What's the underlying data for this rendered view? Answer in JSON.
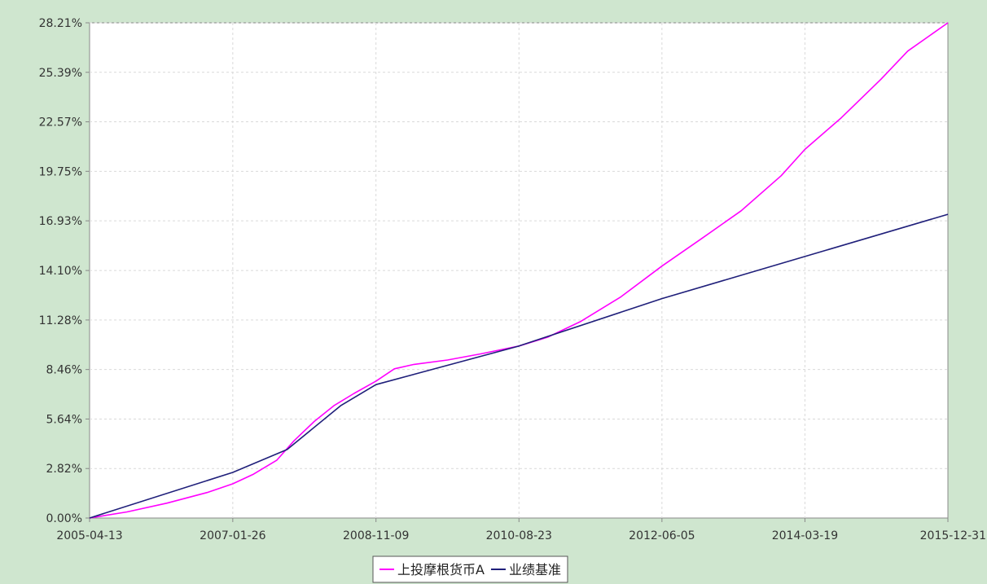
{
  "chart_data": {
    "type": "line",
    "title": "",
    "xlabel": "",
    "ylabel": "",
    "ylim": [
      0,
      28.21
    ],
    "xlim": [
      "2005-04-13",
      "2015-12-31"
    ],
    "y_ticks": [
      "0.00%",
      "2.82%",
      "5.64%",
      "8.46%",
      "11.28%",
      "14.10%",
      "16.93%",
      "19.75%",
      "22.57%",
      "25.39%",
      "28.21%"
    ],
    "x_ticks": [
      "2005-04-13",
      "2007-01-26",
      "2008-11-09",
      "2010-08-23",
      "2012-06-05",
      "2014-03-19",
      "2015-12-31"
    ],
    "grid": true,
    "legend_position": "bottom",
    "series": [
      {
        "name": "上投摩根货币A",
        "color": "#ff00ff",
        "points": [
          [
            "2005-04-13",
            0.0
          ],
          [
            "2005-10-01",
            0.35
          ],
          [
            "2006-04-01",
            0.85
          ],
          [
            "2006-10-01",
            1.45
          ],
          [
            "2007-01-26",
            1.95
          ],
          [
            "2007-05-01",
            2.5
          ],
          [
            "2007-08-15",
            3.3
          ],
          [
            "2007-11-01",
            4.4
          ],
          [
            "2008-02-01",
            5.5
          ],
          [
            "2008-05-01",
            6.4
          ],
          [
            "2008-08-01",
            7.1
          ],
          [
            "2008-11-09",
            7.8
          ],
          [
            "2009-02-01",
            8.5
          ],
          [
            "2009-05-01",
            8.75
          ],
          [
            "2009-10-01",
            9.0
          ],
          [
            "2010-03-01",
            9.35
          ],
          [
            "2010-08-23",
            9.8
          ],
          [
            "2011-01-01",
            10.3
          ],
          [
            "2011-06-01",
            11.2
          ],
          [
            "2011-12-01",
            12.6
          ],
          [
            "2012-06-05",
            14.35
          ],
          [
            "2012-12-01",
            15.9
          ],
          [
            "2013-06-01",
            17.5
          ],
          [
            "2013-12-01",
            19.5
          ],
          [
            "2014-03-19",
            21.0
          ],
          [
            "2014-09-01",
            22.8
          ],
          [
            "2015-03-01",
            25.0
          ],
          [
            "2015-07-01",
            26.6
          ],
          [
            "2015-12-31",
            28.21
          ]
        ]
      },
      {
        "name": "业绩基准",
        "color": "#1f1f7a",
        "points": [
          [
            "2005-04-13",
            0.0
          ],
          [
            "2007-01-26",
            2.6
          ],
          [
            "2007-10-01",
            3.9
          ],
          [
            "2008-06-01",
            6.4
          ],
          [
            "2008-11-09",
            7.6
          ],
          [
            "2010-08-23",
            9.8
          ],
          [
            "2012-06-05",
            12.5
          ],
          [
            "2014-03-19",
            14.9
          ],
          [
            "2015-12-31",
            17.3
          ]
        ]
      }
    ]
  }
}
